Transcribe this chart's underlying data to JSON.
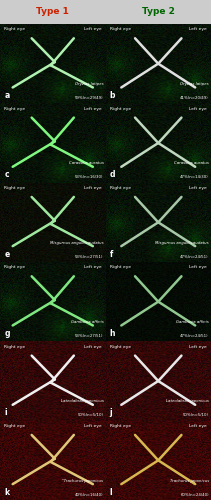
{
  "title_left": "Type 1",
  "title_right": "Type 2",
  "title_left_bg": "#f5c0c0",
  "title_right_bg": "#c0f0d0",
  "title_left_color": "#cc2200",
  "title_right_color": "#006600",
  "fig_bg": "#cccccc",
  "divider_color": "#aaaaaa",
  "panels": [
    {
      "label": "a",
      "col": 0,
      "row": 0,
      "top_left": "Right eye",
      "top_right": "Left eye",
      "species": "Oryzias latipes",
      "stat": "59%(n=29/49)",
      "bg": "green",
      "chiasm_type": 1,
      "chiasm_col": "#b0f0b0"
    },
    {
      "label": "b",
      "col": 1,
      "row": 0,
      "top_left": "Right eye",
      "top_right": "Left eye",
      "species": "Oryzias latipes",
      "stat": "41%(n=20/49)",
      "bg": "green",
      "chiasm_type": 2,
      "chiasm_col": "#e0e0e0"
    },
    {
      "label": "c",
      "col": 0,
      "row": 1,
      "top_left": "Right eye",
      "top_right": "Left eye",
      "species": "Carassius auratus",
      "stat": "53%(n=16/30)",
      "bg": "green",
      "chiasm_type": 1,
      "chiasm_col": "#80f880"
    },
    {
      "label": "d",
      "col": 1,
      "row": 1,
      "top_left": "Right eye",
      "top_right": "Left eye",
      "species": "Carassius auratus",
      "stat": "47%(n=14/30)",
      "bg": "green",
      "chiasm_type": 2,
      "chiasm_col": "#c0d8c0"
    },
    {
      "label": "e",
      "col": 0,
      "row": 2,
      "top_left": "Right eye",
      "top_right": "Left eye",
      "species": "Misgurnus anguillicaudatus",
      "stat": "53%(n=27/51)",
      "bg": "green_reddish",
      "chiasm_type": 1,
      "chiasm_col": "#a0e8a0"
    },
    {
      "label": "f",
      "col": 1,
      "row": 2,
      "top_left": "Right eye",
      "top_right": "Left eye",
      "species": "Misgurnus anguillicaudatus",
      "stat": "47%(n=24/51)",
      "bg": "green",
      "chiasm_type": 2,
      "chiasm_col": "#a8c8a8"
    },
    {
      "label": "g",
      "col": 0,
      "row": 3,
      "top_left": "Right eye",
      "top_right": "Left eye",
      "species": "Gambusia affinis",
      "stat": "53%(n=27/51)",
      "bg": "green",
      "chiasm_type": 1,
      "chiasm_col": "#80e880"
    },
    {
      "label": "h",
      "col": 1,
      "row": 3,
      "top_left": "Right eye",
      "top_right": "Left eye",
      "species": "Gambusia affinis",
      "stat": "47%(n=24/51)",
      "bg": "green_dark",
      "chiasm_type": 2,
      "chiasm_col": "#90c890"
    },
    {
      "label": "i",
      "col": 0,
      "row": 4,
      "top_left": "Right eye",
      "top_right": "Left eye",
      "species": "Lateolabrax japonicus",
      "stat": "50%(n=5/10)",
      "bg": "red",
      "chiasm_type": 1,
      "chiasm_col": "#f0f0f0"
    },
    {
      "label": "j",
      "col": 1,
      "row": 4,
      "top_left": "Right eye",
      "top_right": "Left eye",
      "species": "Lateolabrax japonicus",
      "stat": "50%(n=5/10)",
      "bg": "red",
      "chiasm_type": 2,
      "chiasm_col": "#e8e8e8"
    },
    {
      "label": "k",
      "col": 0,
      "row": 5,
      "top_left": "Right eye",
      "top_right": "Left eye",
      "species": "\"Trachurus japonicus",
      "stat": "40%(n=16/40)",
      "bg": "red_dark",
      "chiasm_type": 1,
      "chiasm_col": "#e0c878"
    },
    {
      "label": "l",
      "col": 1,
      "row": 5,
      "top_left": "Right eye",
      "top_right": "Left eye",
      "species": "Trachurus japonicus",
      "stat": "60%(n=24/40)",
      "bg": "red_dark",
      "chiasm_type": 2,
      "chiasm_col": "#d8b850"
    }
  ]
}
